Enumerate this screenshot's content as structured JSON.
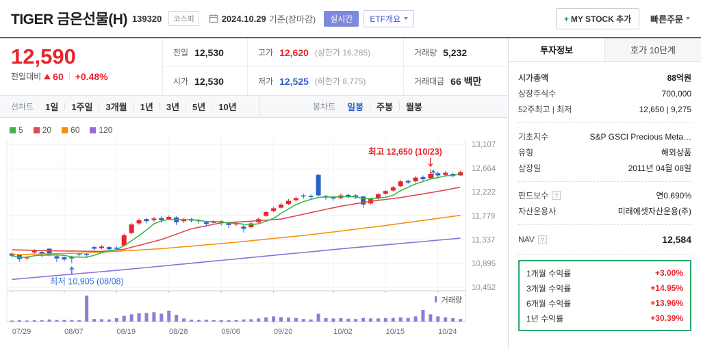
{
  "header": {
    "title": "TIGER 금은선물(H)",
    "code": "139320",
    "market": "코스피",
    "date": "2024.10.29",
    "date_suffix": "기준(장마감)",
    "realtime": "실시간",
    "etf_button": "ETF개요",
    "mystock_plus": "+",
    "mystock": "MY STOCK 추가",
    "quick_order": "빠른주문"
  },
  "price": {
    "current": "12,590",
    "change_label": "전일대비",
    "change": "60",
    "percent": "+0.48%"
  },
  "summary": {
    "rows": [
      {
        "c1l": "전일",
        "c1v": "12,530",
        "c2l": "고가",
        "c2v": "12,620",
        "c2sub": "(상한가 16,285)",
        "c3l": "거래량",
        "c3v": "5,232"
      },
      {
        "c1l": "시가",
        "c1v": "12,530",
        "c2l": "저가",
        "c2v": "12,525",
        "c2sub": "(하한가 8,775)",
        "c3l": "거래대금",
        "c3v": "66 백만"
      }
    ]
  },
  "tabs": {
    "line_label": "선차트",
    "line_items": [
      "1일",
      "1주일",
      "3개월",
      "1년",
      "3년",
      "5년",
      "10년"
    ],
    "candle_label": "봉차트",
    "candle_items": [
      "일봉",
      "주봉",
      "월봉"
    ],
    "candle_active": "일봉"
  },
  "chart_data": {
    "type": "candlestick",
    "title": "TIGER 금은선물(H) 일봉 차트",
    "ma_legend": [
      {
        "label": "5",
        "color": "#3cb54a"
      },
      {
        "label": "20",
        "color": "#e0484e"
      },
      {
        "label": "60",
        "color": "#f5920b"
      },
      {
        "label": "120",
        "color": "#8f6fd6"
      }
    ],
    "y_ticks": [
      13107,
      12664,
      12222,
      11779,
      11337,
      10895,
      10452
    ],
    "x_ticks": [
      {
        "label": "07/29",
        "i": 0
      },
      {
        "label": "08/07",
        "i": 7
      },
      {
        "label": "08/19",
        "i": 14
      },
      {
        "label": "08/28",
        "i": 21
      },
      {
        "label": "09/06",
        "i": 28
      },
      {
        "label": "09/20",
        "i": 35
      },
      {
        "label": "10/02",
        "i": 43
      },
      {
        "label": "10/15",
        "i": 50
      },
      {
        "label": "10/24",
        "i": 57
      }
    ],
    "annotations": {
      "high": {
        "text": "최고 12,650 (10/23)",
        "index": 56,
        "value": 12650
      },
      "low": {
        "text": "최저 10,905 (08/08)",
        "index": 8,
        "value": 10905
      }
    },
    "volume_label": "거래량",
    "colors": {
      "up": "#e8242c",
      "down": "#2a61c9",
      "volume": "#8b7dd8",
      "grid": "#eef0f4",
      "axis": "#c6cdda",
      "label": "#8b909b"
    },
    "candles": [
      [
        11080,
        11040,
        11000,
        11100,
        4
      ],
      [
        11050,
        10980,
        10930,
        11060,
        5
      ],
      [
        11000,
        11010,
        10960,
        11040,
        4
      ],
      [
        11100,
        11130,
        11080,
        11160,
        5
      ],
      [
        11110,
        11080,
        11010,
        11130,
        5
      ],
      [
        11170,
        11060,
        11030,
        11180,
        8
      ],
      [
        11030,
        10990,
        10920,
        11050,
        6
      ],
      [
        11010,
        10970,
        10930,
        11030,
        6
      ],
      [
        11010,
        10990,
        10905,
        11040,
        6
      ],
      [
        11080,
        11060,
        11030,
        11100,
        5
      ],
      [
        11070,
        11050,
        11010,
        11090,
        100
      ],
      [
        11200,
        11170,
        11130,
        11230,
        10
      ],
      [
        11180,
        11210,
        11160,
        11240,
        9
      ],
      [
        11200,
        11160,
        11110,
        11220,
        8
      ],
      [
        11190,
        11170,
        11120,
        11210,
        13
      ],
      [
        11230,
        11420,
        11210,
        11450,
        22
      ],
      [
        11460,
        11620,
        11440,
        11650,
        28
      ],
      [
        11640,
        11700,
        11610,
        11730,
        32
      ],
      [
        11720,
        11680,
        11640,
        11740,
        33
      ],
      [
        11700,
        11730,
        11670,
        11760,
        36
      ],
      [
        11740,
        11700,
        11650,
        11770,
        30
      ],
      [
        11720,
        11760,
        11700,
        11790,
        42
      ],
      [
        11750,
        11660,
        11610,
        11770,
        26
      ],
      [
        11680,
        11710,
        11650,
        11740,
        12
      ],
      [
        11720,
        11690,
        11660,
        11740,
        7
      ],
      [
        11700,
        11680,
        11630,
        11720,
        6
      ],
      [
        11660,
        11630,
        11580,
        11690,
        7
      ],
      [
        11650,
        11670,
        11620,
        11700,
        6
      ],
      [
        11680,
        11650,
        11600,
        11700,
        6
      ],
      [
        11640,
        11610,
        11550,
        11660,
        5
      ],
      [
        11620,
        11650,
        11590,
        11680,
        6
      ],
      [
        11580,
        11540,
        11470,
        11610,
        8
      ],
      [
        11570,
        11640,
        11550,
        11670,
        9
      ],
      [
        11660,
        11720,
        11640,
        11750,
        12
      ],
      [
        11780,
        11850,
        11760,
        11880,
        16
      ],
      [
        11870,
        11920,
        11850,
        11950,
        20
      ],
      [
        11930,
        11990,
        11910,
        12020,
        17
      ],
      [
        12000,
        12060,
        11980,
        12090,
        15
      ],
      [
        12070,
        12110,
        12040,
        12140,
        14
      ],
      [
        12160,
        12140,
        12100,
        12190,
        10
      ],
      [
        12150,
        12130,
        12090,
        12180,
        8
      ],
      [
        12540,
        12160,
        12140,
        12560,
        30
      ],
      [
        12150,
        12120,
        12080,
        12170,
        14
      ],
      [
        12130,
        12100,
        12060,
        12150,
        12
      ],
      [
        12110,
        12160,
        12090,
        12200,
        13
      ],
      [
        12170,
        12140,
        12100,
        12190,
        11
      ],
      [
        12160,
        12130,
        12090,
        12180,
        10
      ],
      [
        12140,
        11990,
        11930,
        12150,
        14
      ],
      [
        12010,
        12090,
        11990,
        12110,
        12
      ],
      [
        12100,
        12180,
        12080,
        12200,
        12
      ],
      [
        12190,
        12240,
        12170,
        12260,
        13
      ],
      [
        12250,
        12310,
        12230,
        12340,
        14
      ],
      [
        12330,
        12420,
        12310,
        12450,
        16
      ],
      [
        12430,
        12400,
        12370,
        12450,
        14
      ],
      [
        12420,
        12490,
        12400,
        12520,
        20
      ],
      [
        12500,
        12460,
        12420,
        12530,
        45
      ],
      [
        12480,
        12560,
        12450,
        12650,
        28
      ],
      [
        12570,
        12530,
        12490,
        12600,
        20
      ],
      [
        12540,
        12580,
        12510,
        12610,
        16
      ],
      [
        12560,
        12520,
        12490,
        12590,
        13
      ],
      [
        12530,
        12590,
        12525,
        12620,
        10
      ]
    ],
    "ma20": [
      [
        0,
        11150
      ],
      [
        6,
        11130
      ],
      [
        12,
        11120
      ],
      [
        15,
        11160
      ],
      [
        20,
        11340
      ],
      [
        24,
        11540
      ],
      [
        28,
        11650
      ],
      [
        32,
        11680
      ],
      [
        36,
        11720
      ],
      [
        40,
        11840
      ],
      [
        44,
        11960
      ],
      [
        48,
        12050
      ],
      [
        52,
        12120
      ],
      [
        56,
        12210
      ],
      [
        60,
        12310
      ]
    ],
    "ma60": [
      [
        0,
        11060
      ],
      [
        10,
        11090
      ],
      [
        20,
        11170
      ],
      [
        30,
        11290
      ],
      [
        40,
        11430
      ],
      [
        50,
        11600
      ],
      [
        60,
        11790
      ]
    ],
    "ma120": [
      [
        0,
        10600
      ],
      [
        15,
        10780
      ],
      [
        30,
        10980
      ],
      [
        45,
        11180
      ],
      [
        60,
        11365
      ]
    ]
  },
  "sidebar": {
    "tabs": [
      {
        "label": "투자정보",
        "active": true
      },
      {
        "label": "호가 10단계",
        "active": false
      }
    ],
    "sections": [
      [
        {
          "label": "시가총액",
          "value": "88억원",
          "bold": true
        },
        {
          "label": "상장주식수",
          "value": "700,000"
        },
        {
          "label": "52주최고 | 최저",
          "value": "12,650 | 9,275"
        }
      ],
      [
        {
          "label": "기초지수",
          "value": "S&P GSCI Precious Meta…"
        },
        {
          "label": "유형",
          "value": "해외상품"
        },
        {
          "label": "상장일",
          "value": "2011년 04월 08일"
        }
      ],
      [
        {
          "label": "펀드보수",
          "value": "연0.690%",
          "help": true
        },
        {
          "label": "자산운용사",
          "value": "미래에셋자산운용(주)"
        }
      ]
    ],
    "nav": {
      "label": "NAV",
      "value": "12,584",
      "help": true
    },
    "returns": [
      {
        "label": "1개월 수익률",
        "value": "+3.00%"
      },
      {
        "label": "3개월 수익률",
        "value": "+14.95%"
      },
      {
        "label": "6개월 수익률",
        "value": "+13.96%"
      },
      {
        "label": "1년 수익률",
        "value": "+30.39%"
      }
    ]
  }
}
